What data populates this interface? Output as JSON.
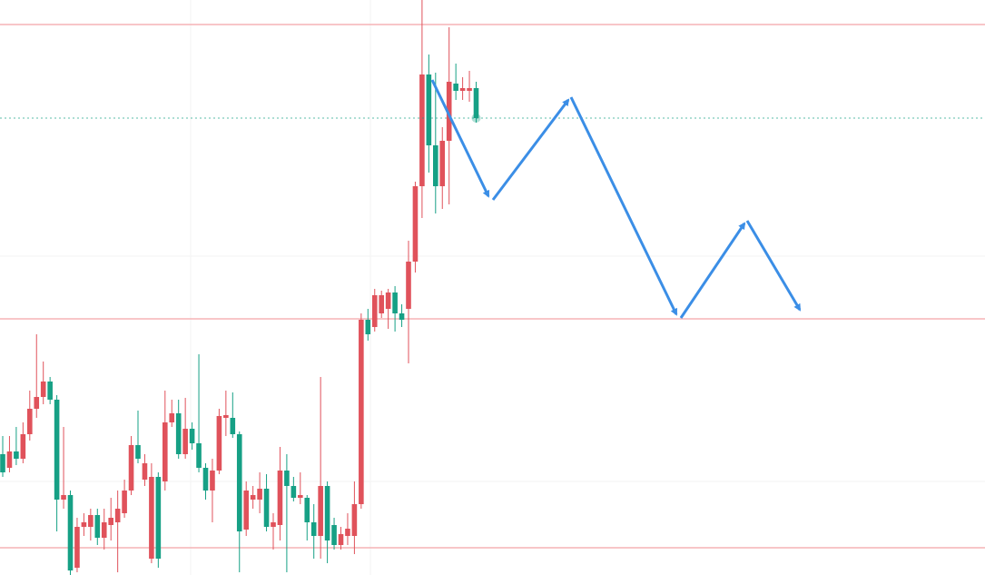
{
  "chart_data": {
    "type": "candlestick",
    "open": [
      133,
      118,
      136,
      128,
      155,
      183,
      196,
      213,
      193,
      83,
      88,
      8,
      53,
      53,
      66,
      41,
      55,
      58,
      68,
      93,
      143,
      105,
      18,
      108,
      103,
      168,
      178,
      133,
      161,
      145,
      118,
      93,
      115,
      173,
      173,
      155,
      50,
      83,
      83,
      95,
      53,
      55,
      115,
      98,
      85,
      85,
      58,
      43,
      98,
      55,
      33,
      43,
      43,
      78,
      281,
      273,
      288,
      293,
      311,
      288,
      293,
      345,
      428,
      551,
      473,
      428,
      478,
      541,
      533,
      533,
      536
    ],
    "high": [
      153,
      153,
      163,
      168,
      203,
      265,
      235,
      218,
      198,
      163,
      93,
      63,
      68,
      73,
      73,
      73,
      85,
      93,
      105,
      153,
      181,
      133,
      123,
      113,
      203,
      193,
      193,
      195,
      168,
      243,
      123,
      128,
      183,
      203,
      201,
      158,
      103,
      98,
      113,
      111,
      68,
      141,
      133,
      108,
      113,
      88,
      78,
      218,
      103,
      63,
      53,
      68,
      103,
      288,
      293,
      315,
      313,
      315,
      318,
      298,
      368,
      433,
      633,
      573,
      553,
      493,
      603,
      563,
      548,
      555,
      543
    ],
    "low": [
      108,
      113,
      121,
      123,
      148,
      173,
      188,
      188,
      48,
      73,
      0,
      3,
      43,
      38,
      33,
      28,
      38,
      3,
      63,
      88,
      123,
      98,
      13,
      8,
      93,
      163,
      128,
      128,
      138,
      113,
      83,
      58,
      111,
      153,
      151,
      3,
      43,
      73,
      68,
      48,
      28,
      38,
      3,
      81,
      78,
      38,
      18,
      18,
      13,
      28,
      28,
      33,
      23,
      73,
      258,
      268,
      283,
      271,
      268,
      273,
      233,
      333,
      393,
      443,
      398,
      403,
      408,
      523,
      523,
      521,
      498
    ],
    "close": [
      113,
      136,
      128,
      155,
      183,
      196,
      213,
      193,
      83,
      88,
      5,
      53,
      58,
      66,
      41,
      58,
      63,
      73,
      93,
      143,
      128,
      123,
      108,
      18,
      168,
      178,
      133,
      161,
      145,
      118,
      93,
      115,
      175,
      176,
      155,
      48,
      93,
      88,
      95,
      53,
      58,
      115,
      98,
      85,
      88,
      58,
      43,
      98,
      38,
      33,
      45,
      51,
      78,
      281,
      265,
      308,
      308,
      311,
      288,
      281,
      345,
      428,
      551,
      473,
      428,
      478,
      543,
      533,
      536,
      536,
      503
    ],
    "up_color": "#e0525b",
    "down_color": "#16a085",
    "ylim": [
      0,
      633
    ],
    "levels": [
      606,
      282,
      30
    ],
    "level_color": "#f4a4a8",
    "last_price_line": true
  }
}
